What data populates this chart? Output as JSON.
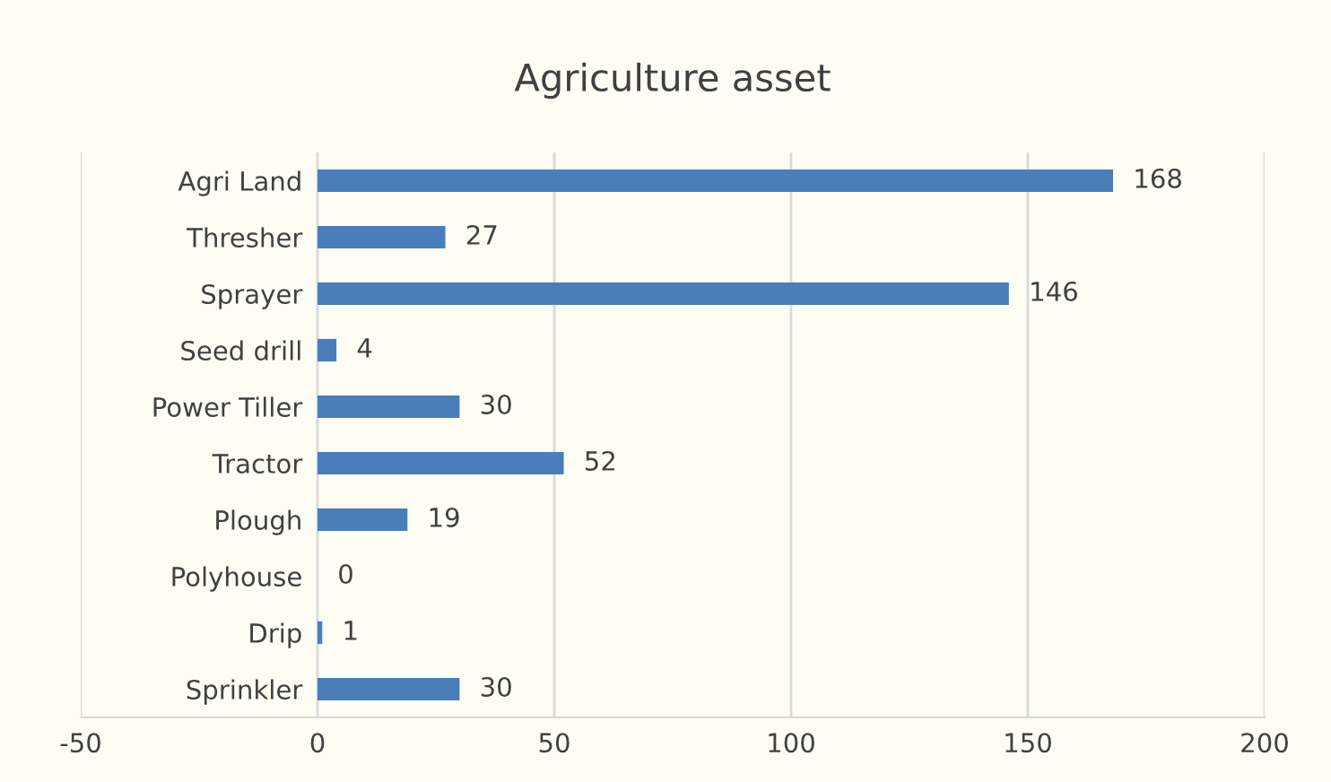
{
  "chart_data": {
    "type": "bar",
    "orientation": "horizontal",
    "title": "Agriculture asset",
    "categories": [
      "Agri Land",
      "Thresher",
      "Sprayer",
      "Seed drill",
      "Power Tiller",
      "Tractor",
      "Plough",
      "Polyhouse",
      "Drip",
      "Sprinkler"
    ],
    "values": [
      168,
      27,
      146,
      4,
      30,
      52,
      19,
      0,
      1,
      30
    ],
    "color": "#4a7ebb",
    "xlim": [
      -50,
      200
    ],
    "xticks": [
      -50,
      0,
      50,
      100,
      150,
      200
    ],
    "grid": "x",
    "data_labels": true,
    "legend": false
  }
}
